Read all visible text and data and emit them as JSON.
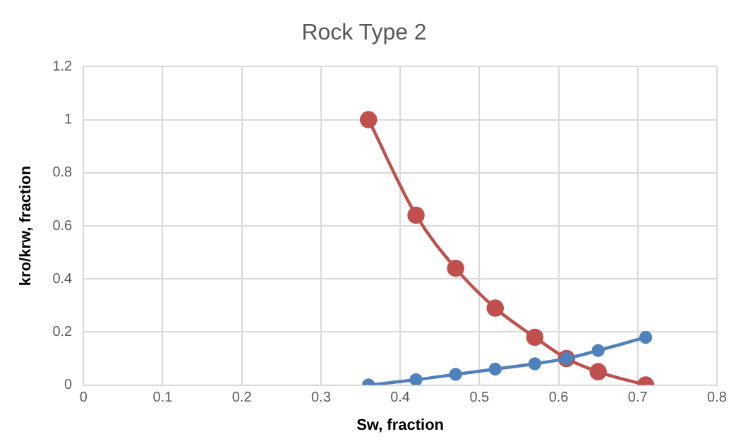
{
  "chart_data": {
    "type": "line",
    "title": "Rock Type 2",
    "xlabel": "Sw, fraction",
    "ylabel": "kro/krw, fraction",
    "x": [
      0.36,
      0.42,
      0.47,
      0.52,
      0.57,
      0.61,
      0.65,
      0.71
    ],
    "series": [
      {
        "color": "#4f81bd",
        "values": [
          0,
          0.02,
          0.04,
          0.06,
          0.08,
          0.1,
          0.13,
          0.18
        ]
      },
      {
        "color": "#c0504d",
        "values": [
          1,
          0.64,
          0.44,
          0.29,
          0.18,
          0.1,
          0.05,
          0
        ]
      }
    ],
    "xlim": [
      0,
      0.8
    ],
    "xticks": [
      0,
      0.1,
      0.2,
      0.3,
      0.4,
      0.5,
      0.6,
      0.7,
      0.8
    ],
    "ylim": [
      0,
      1.2
    ],
    "yticks": [
      0,
      0.2,
      0.4,
      0.6,
      0.8,
      1,
      1.2
    ],
    "grid": true,
    "legend": false,
    "marker": "circle",
    "line_style": "solid"
  }
}
